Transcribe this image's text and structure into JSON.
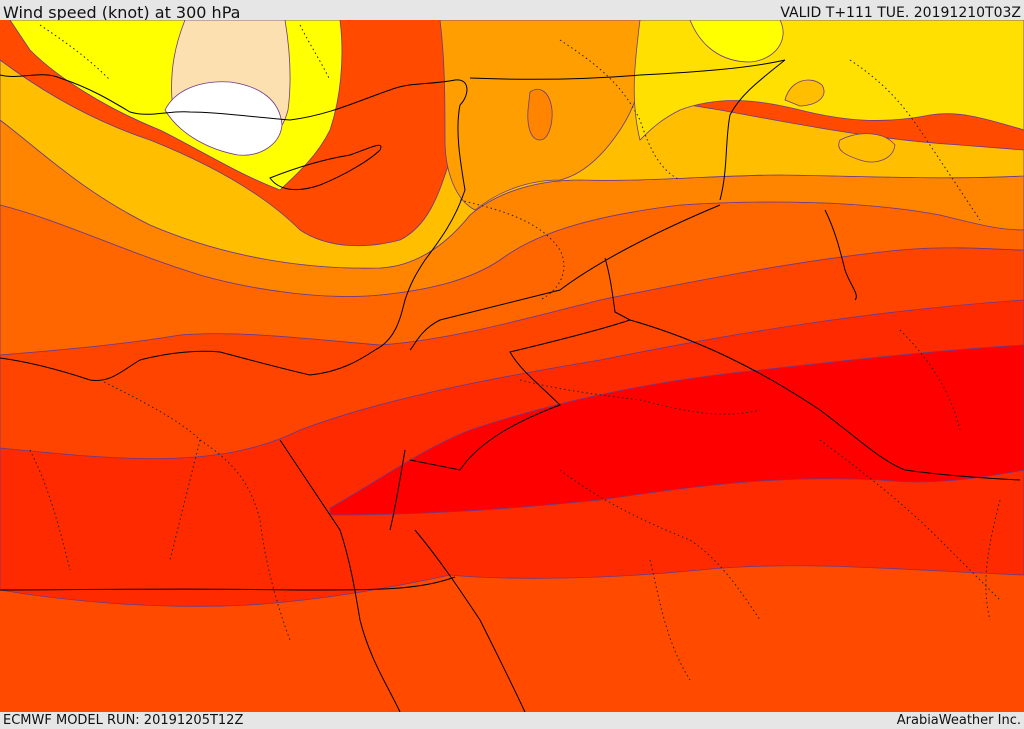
{
  "header": {
    "title": "Wind speed (knot) at 300 hPa",
    "valid": "VALID T+111 TUE. 20191210T03Z"
  },
  "footer": {
    "model_run": "ECMWF MODEL RUN: 20191205T12Z",
    "credit": "ArabiaWeather Inc."
  },
  "palette": {
    "white": "#ffffff",
    "peach": "#fde0b0",
    "yellow": "#ffff00",
    "gold": "#ffe000",
    "amber": "#ffbe00",
    "orange_light": "#ff9e00",
    "orange": "#ff8200",
    "orange_dark": "#ff6400",
    "red_orange": "#ff4400",
    "red": "#ff2400",
    "deep_red": "#ff0000"
  }
}
